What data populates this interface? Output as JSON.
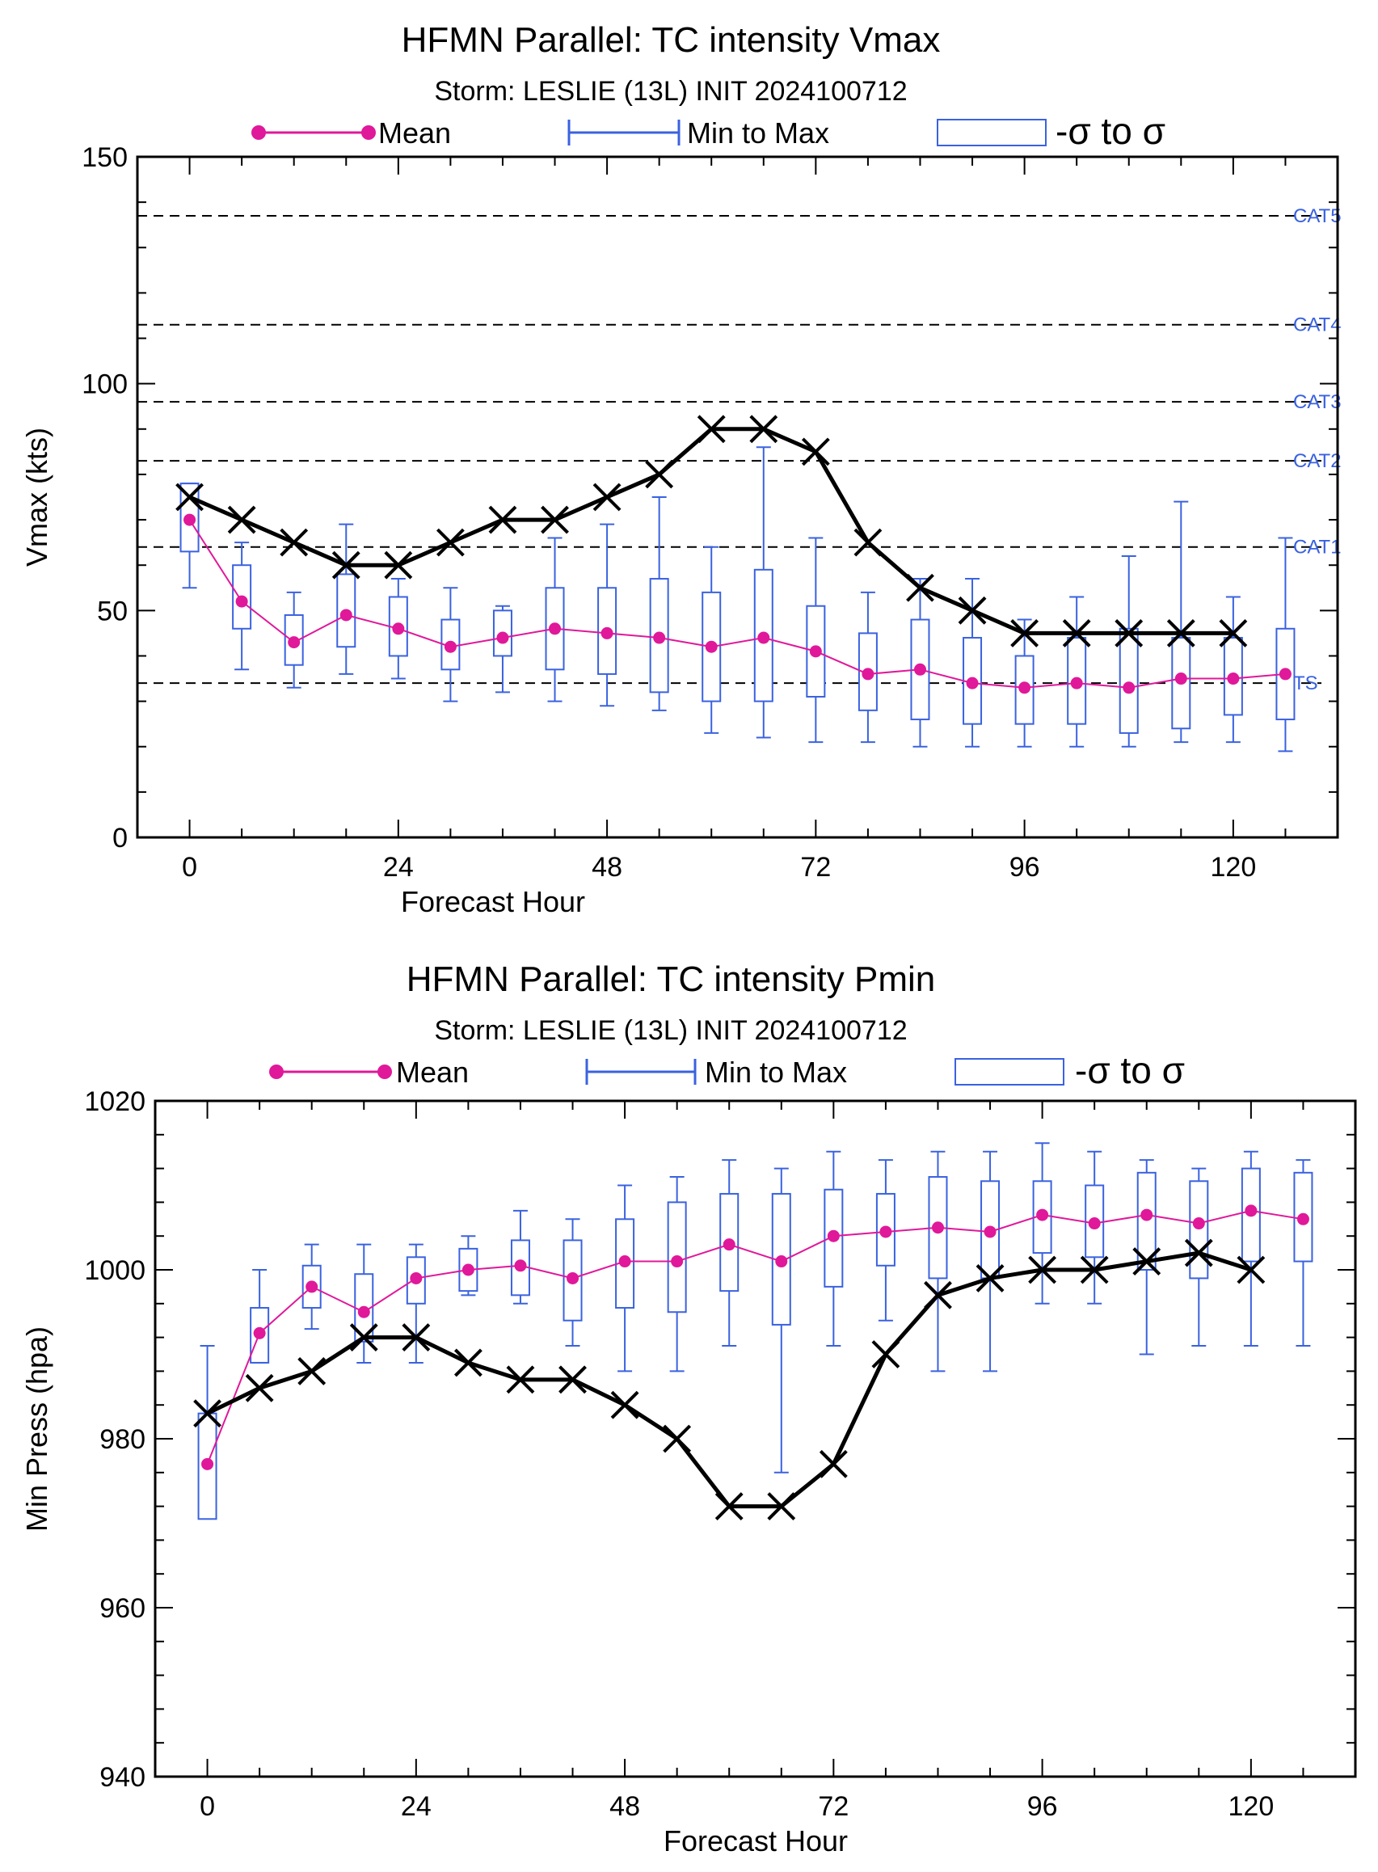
{
  "colors": {
    "mean": "#e0189a",
    "range": "#3a62e0",
    "observed": "#000000",
    "threshold_label": "#3a62e0",
    "axis": "#000000"
  },
  "legend": {
    "mean_label": "Mean",
    "range_label": "Min to Max",
    "sigma_label": "-σ to σ"
  },
  "chart_data": [
    {
      "type": "line",
      "title": "HFMN Parallel: TC intensity Vmax",
      "subtitle": "Storm: LESLIE (13L) INIT 2024100712",
      "xlabel": "Forecast Hour",
      "ylabel": "Vmax (kts)",
      "xlim": [
        -6,
        132
      ],
      "ylim": [
        0,
        150
      ],
      "xticks": [
        0,
        24,
        48,
        72,
        96,
        120
      ],
      "yticks": [
        0,
        50,
        100,
        150
      ],
      "thresholds": [
        {
          "label": "TS",
          "value": 34
        },
        {
          "label": "CAT1",
          "value": 64
        },
        {
          "label": "CAT2",
          "value": 83
        },
        {
          "label": "CAT3",
          "value": 96
        },
        {
          "label": "CAT4",
          "value": 113
        },
        {
          "label": "CAT5",
          "value": 137
        }
      ],
      "ensemble": {
        "hours": [
          0,
          6,
          12,
          18,
          24,
          30,
          36,
          42,
          48,
          54,
          60,
          66,
          72,
          78,
          84,
          90,
          96,
          102,
          108,
          114,
          120,
          126
        ],
        "mean": [
          70,
          52,
          43,
          49,
          46,
          42,
          44,
          46,
          45,
          44,
          42,
          44,
          41,
          36,
          37,
          34,
          33,
          34,
          33,
          35,
          35,
          36
        ],
        "min": [
          55,
          37,
          33,
          36,
          35,
          30,
          32,
          30,
          29,
          28,
          23,
          22,
          21,
          21,
          20,
          20,
          20,
          20,
          20,
          21,
          21,
          19
        ],
        "max": [
          78,
          65,
          54,
          69,
          57,
          55,
          51,
          66,
          69,
          75,
          64,
          86,
          66,
          54,
          57,
          57,
          48,
          53,
          62,
          74,
          53,
          66
        ],
        "sigma_low": [
          63,
          46,
          38,
          42,
          40,
          37,
          40,
          37,
          36,
          32,
          30,
          30,
          31,
          28,
          26,
          25,
          25,
          25,
          23,
          24,
          27,
          26
        ],
        "sigma_high": [
          78,
          60,
          49,
          58,
          53,
          48,
          50,
          55,
          55,
          57,
          54,
          59,
          51,
          45,
          48,
          44,
          40,
          44,
          46,
          44,
          44,
          46
        ]
      },
      "observed": {
        "hours": [
          0,
          6,
          12,
          18,
          24,
          30,
          36,
          42,
          48,
          54,
          60,
          66,
          72,
          78,
          84,
          90,
          96,
          102,
          108,
          114,
          120
        ],
        "values": [
          75,
          70,
          65,
          60,
          60,
          65,
          70,
          70,
          75,
          80,
          90,
          90,
          85,
          65,
          55,
          50,
          45,
          45,
          45,
          45,
          45
        ]
      }
    },
    {
      "type": "line",
      "title": "HFMN Parallel: TC intensity Pmin",
      "subtitle": "Storm: LESLIE (13L) INIT 2024100712",
      "xlabel": "Forecast Hour",
      "ylabel": "Min Press (hpa)",
      "xlim": [
        -6,
        132
      ],
      "ylim": [
        940,
        1020
      ],
      "xticks": [
        0,
        24,
        48,
        72,
        96,
        120
      ],
      "yticks": [
        940,
        960,
        980,
        1000,
        1020
      ],
      "thresholds": [],
      "ensemble": {
        "hours": [
          0,
          6,
          12,
          18,
          24,
          30,
          36,
          42,
          48,
          54,
          60,
          66,
          72,
          78,
          84,
          90,
          96,
          102,
          108,
          114,
          120,
          126
        ],
        "mean": [
          977,
          992.5,
          998,
          995,
          999,
          1000,
          1000.5,
          999,
          1001,
          1001,
          1003,
          1001,
          1004,
          1004.5,
          1005,
          1004.5,
          1006.5,
          1005.5,
          1006.5,
          1005.5,
          1007,
          1006
        ],
        "min": [
          973,
          989,
          993,
          989,
          989,
          997,
          996,
          991,
          988,
          988,
          991,
          976,
          991,
          994,
          988,
          988,
          996,
          996,
          990,
          991,
          991,
          991
        ],
        "max": [
          991,
          1000,
          1003,
          1003,
          1003,
          1004,
          1007,
          1006,
          1010,
          1011,
          1013,
          1012,
          1014,
          1013,
          1014,
          1014,
          1015,
          1014,
          1013,
          1012,
          1014,
          1013
        ],
        "sigma_low": [
          970.5,
          989,
          995.5,
          991.5,
          996,
          997.5,
          997,
          994,
          995.5,
          995,
          997.5,
          993.5,
          998,
          1000.5,
          999,
          999,
          1002,
          1001.5,
          1000,
          999,
          1001,
          1001
        ],
        "sigma_high": [
          983,
          995.5,
          1000.5,
          999.5,
          1001.5,
          1002.5,
          1003.5,
          1003.5,
          1006,
          1008,
          1009,
          1009,
          1009.5,
          1009,
          1011,
          1010.5,
          1010.5,
          1010,
          1011.5,
          1010.5,
          1012,
          1011.5
        ]
      },
      "observed": {
        "hours": [
          0,
          6,
          12,
          18,
          24,
          30,
          36,
          42,
          48,
          54,
          60,
          66,
          72,
          78,
          84,
          90,
          96,
          102,
          108,
          114,
          120
        ],
        "values": [
          983,
          986,
          988,
          992,
          992,
          989,
          987,
          987,
          984,
          980,
          972,
          972,
          977,
          990,
          997,
          999,
          1000,
          1000,
          1001,
          1002,
          1000
        ]
      }
    }
  ]
}
